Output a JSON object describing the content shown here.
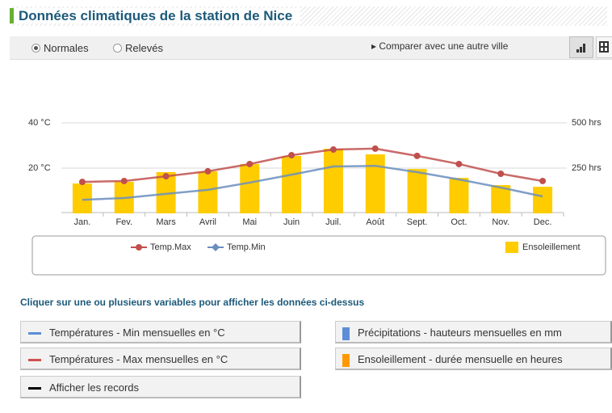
{
  "header": {
    "title": "Données climatiques de la station de Nice"
  },
  "controls": {
    "options": [
      "Normales",
      "Relevés"
    ],
    "selected": 0,
    "compare": "Comparer avec une autre ville"
  },
  "chart_data": {
    "type": "combo",
    "categories": [
      "Jan.",
      "Fev.",
      "Mars",
      "Avril",
      "Mai",
      "Juin",
      "Juil.",
      "Août",
      "Sept.",
      "Oct.",
      "Nov.",
      "Dec."
    ],
    "series": [
      {
        "name": "Temp.Max",
        "type": "line",
        "marker": "circle",
        "color": "#c0504d",
        "values": [
          13.9,
          14.3,
          16.4,
          18.6,
          21.8,
          25.7,
          28.2,
          28.6,
          25.4,
          21.8,
          17.5,
          14.3
        ]
      },
      {
        "name": "Temp.Min",
        "type": "line",
        "marker": "diamond",
        "color": "#6a8ebf",
        "values": [
          6.0,
          6.8,
          8.6,
          10.4,
          13.6,
          17.1,
          20.7,
          21.0,
          18.2,
          15.0,
          11.4,
          7.5
        ]
      },
      {
        "name": "Ensoleillement",
        "type": "bar",
        "axis": "y2",
        "color": "#ffcc00",
        "values": [
          165,
          174,
          228,
          232,
          272,
          317,
          357,
          326,
          245,
          196,
          156,
          147
        ]
      }
    ],
    "ylim": [
      0,
      40
    ],
    "yticks": [
      {
        "value": 20,
        "label": "20 °C"
      },
      {
        "value": 40,
        "label": "40 °C"
      }
    ],
    "y2lim": [
      0,
      500
    ],
    "y2ticks": [
      {
        "value": 250,
        "label": "250 hrs"
      },
      {
        "value": 500,
        "label": "500 hrs"
      }
    ],
    "grid": true
  },
  "variables": {
    "prompt": "Cliquer sur une ou plusieurs variables pour afficher les données ci-dessus",
    "buttons": [
      {
        "label": "Températures - Min mensuelles en °C",
        "color": "#5b8ed6"
      },
      {
        "label": "Températures - Max mensuelles en °C",
        "color": "#d0504d"
      },
      {
        "label": "Afficher les records",
        "color": "#000000"
      },
      {
        "label": "Précipitations - hauteurs mensuelles en mm",
        "color": "#5b8ed6"
      },
      {
        "label": "Ensoleillement - durée mensuelle en heures",
        "color": "#ff9900"
      }
    ]
  }
}
